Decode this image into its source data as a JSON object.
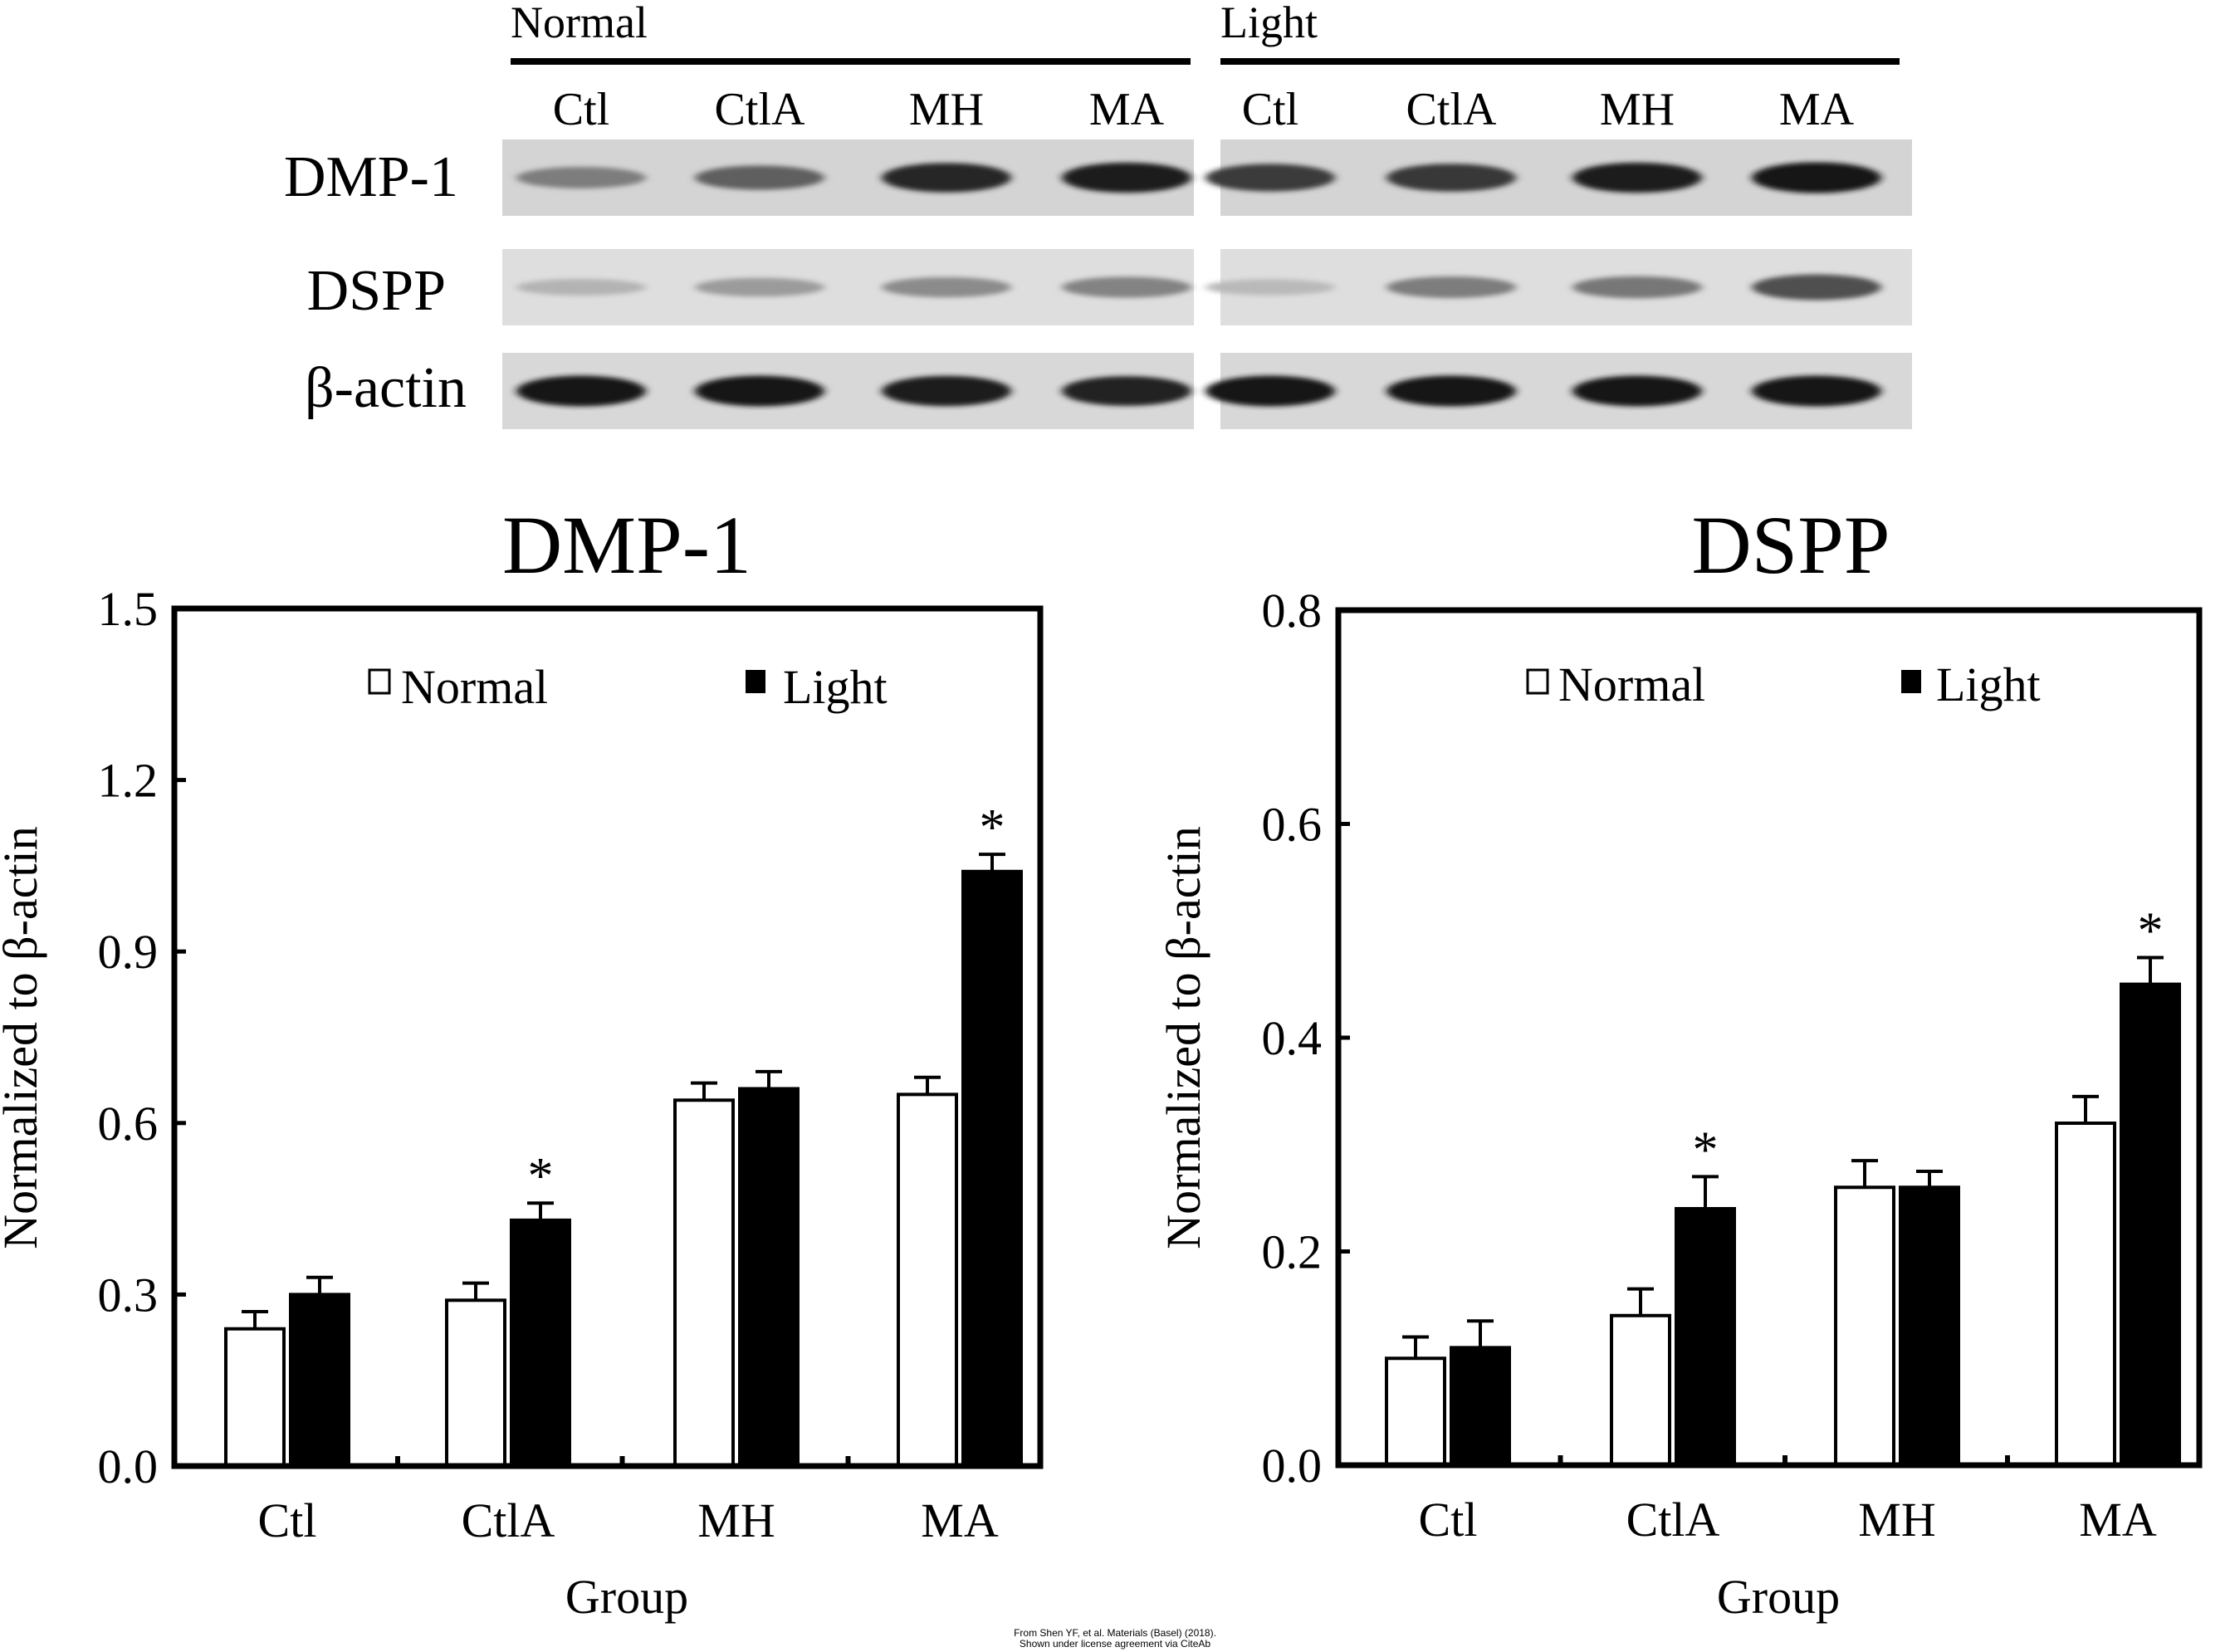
{
  "blot": {
    "groups": [
      {
        "name": "Normal",
        "lanes": [
          "Ctl",
          "CtlA",
          "MH",
          "MA"
        ]
      },
      {
        "name": "Light",
        "lanes": [
          "Ctl",
          "CtlA",
          "MH",
          "MA"
        ]
      }
    ],
    "rows": [
      {
        "label": "DMP-1",
        "intensity": [
          [
            0.45,
            0.6,
            0.88,
            0.92
          ],
          [
            0.78,
            0.8,
            0.92,
            0.96
          ]
        ]
      },
      {
        "label": "DSPP",
        "intensity": [
          [
            0.18,
            0.3,
            0.38,
            0.42
          ],
          [
            0.15,
            0.45,
            0.48,
            0.68
          ]
        ]
      },
      {
        "label": "β-actin",
        "intensity": [
          [
            0.95,
            0.95,
            0.93,
            0.9
          ],
          [
            0.95,
            0.95,
            0.95,
            0.95
          ]
        ]
      }
    ]
  },
  "chart_data": [
    {
      "type": "bar",
      "title": "DMP-1",
      "xlabel": "Group",
      "ylabel": "Normalized to β-actin",
      "categories": [
        "Ctl",
        "CtlA",
        "MH",
        "MA"
      ],
      "ylim": [
        0,
        1.5
      ],
      "yticks": [
        "0.0",
        "0.3",
        "0.6",
        "0.9",
        "1.2",
        "1.5"
      ],
      "legend_placement": "top",
      "series": [
        {
          "name": "Normal",
          "color": "#ffffff",
          "values": [
            0.24,
            0.29,
            0.64,
            0.65
          ],
          "errors": [
            0.03,
            0.03,
            0.03,
            0.03
          ],
          "significance": [
            "",
            "",
            "",
            ""
          ]
        },
        {
          "name": "Light",
          "color": "#000000",
          "values": [
            0.3,
            0.43,
            0.66,
            1.04
          ],
          "errors": [
            0.03,
            0.03,
            0.03,
            0.03
          ],
          "significance": [
            "",
            "*",
            "",
            "*"
          ]
        }
      ]
    },
    {
      "type": "bar",
      "title": "DSPP",
      "xlabel": "Group",
      "ylabel": "Normalized to β-actin",
      "categories": [
        "Ctl",
        "CtlA",
        "MH",
        "MA"
      ],
      "ylim": [
        0,
        0.8
      ],
      "yticks": [
        "0.0",
        "0.2",
        "0.4",
        "0.6",
        "0.8"
      ],
      "legend_placement": "top",
      "series": [
        {
          "name": "Normal",
          "color": "#ffffff",
          "values": [
            0.1,
            0.14,
            0.26,
            0.32
          ],
          "errors": [
            0.02,
            0.025,
            0.025,
            0.025
          ],
          "significance": [
            "",
            "",
            "",
            ""
          ]
        },
        {
          "name": "Light",
          "color": "#000000",
          "values": [
            0.11,
            0.24,
            0.26,
            0.45
          ],
          "errors": [
            0.025,
            0.03,
            0.015,
            0.025
          ],
          "significance": [
            "",
            "*",
            "",
            "*"
          ]
        }
      ]
    }
  ],
  "credit": {
    "line1": "From Shen YF, et al. Materials (Basel) (2018).",
    "line2": "Shown under license agreement via CiteAb"
  }
}
